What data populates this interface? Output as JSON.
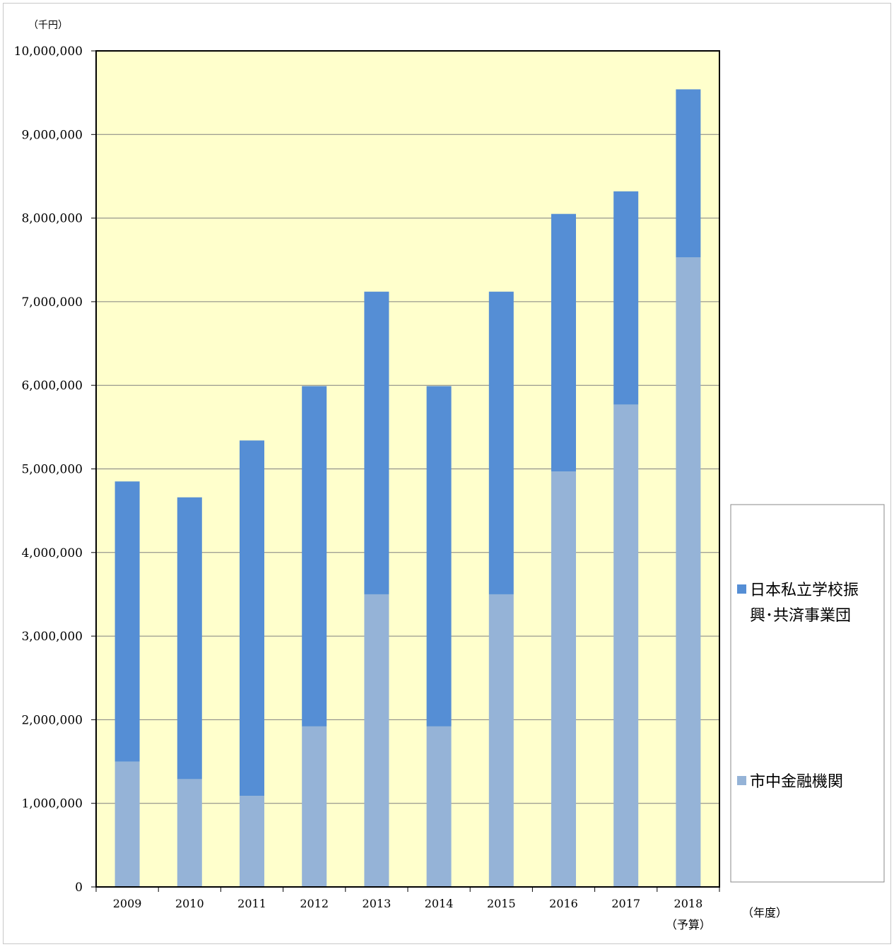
{
  "chart_data": {
    "type": "bar",
    "stacked": true,
    "y_unit_label": "（千円）",
    "x_unit_label": "（年度）",
    "categories": [
      "2009",
      "2010",
      "2011",
      "2012",
      "2013",
      "2014",
      "2015",
      "2016",
      "2017",
      "2018"
    ],
    "category_sublabels": [
      "",
      "",
      "",
      "",
      "",
      "",
      "",
      "",
      "",
      "（予算）"
    ],
    "series": [
      {
        "name": "市中金融機関",
        "color": "#95b3d7",
        "values": [
          1500000,
          1290000,
          1090000,
          1920000,
          3500000,
          1920000,
          3500000,
          4970000,
          5770000,
          7530000
        ]
      },
      {
        "name": "日本私立学校振興・共済事業団",
        "color": "#558ed5",
        "values": [
          3350000,
          3370000,
          4250000,
          4070000,
          3620000,
          4070000,
          3620000,
          3080000,
          2550000,
          2010000
        ]
      }
    ],
    "legend_lines": [
      [
        "日本私立学校振",
        "興･共済事業団"
      ],
      [
        "市中金融機関"
      ]
    ],
    "ylim": [
      0,
      10000000
    ],
    "y_ticks": [
      "0",
      "1,000,000",
      "2,000,000",
      "3,000,000",
      "4,000,000",
      "5,000,000",
      "6,000,000",
      "7,000,000",
      "8,000,000",
      "9,000,000",
      "10,000,000"
    ],
    "y_tick_values": [
      0,
      1000000,
      2000000,
      3000000,
      4000000,
      5000000,
      6000000,
      7000000,
      8000000,
      9000000,
      10000000
    ],
    "grid": true,
    "plot_background": "#ffffcc",
    "legend_position": "right"
  }
}
